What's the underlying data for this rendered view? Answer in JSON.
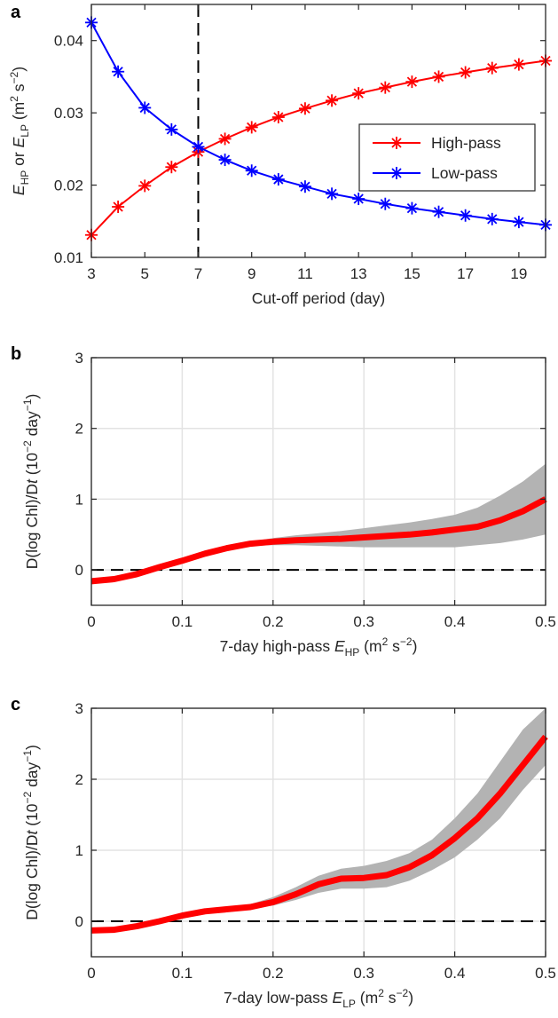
{
  "chart_data": [
    {
      "panel": "a",
      "type": "line",
      "x": [
        3,
        4,
        5,
        6,
        7,
        8,
        9,
        10,
        11,
        12,
        13,
        14,
        15,
        16,
        17,
        18,
        19,
        20
      ],
      "xlim": [
        3,
        20
      ],
      "ylim": [
        0.01,
        0.045
      ],
      "xticks": [
        "3",
        "5",
        "7",
        "9",
        "11",
        "13",
        "15",
        "17",
        "19"
      ],
      "yticks": [
        "0.01",
        "0.02",
        "0.03",
        "0.04"
      ],
      "xlabel": "Cut-off period (day)",
      "ylabel": {
        "e1": "E",
        "sub1": "HP",
        "mid": " or ",
        "e2": "E",
        "sub2": "LP",
        "unit_open": " (m",
        "sup1": "2",
        "unit_mid": " s",
        "sup2": "−2",
        "unit_close": ")"
      },
      "vline_x": 7,
      "grid": false,
      "legend_position": "right",
      "series": [
        {
          "name": "High-pass",
          "color": "#ff0000",
          "values": [
            0.0131,
            0.017,
            0.0199,
            0.0225,
            0.0246,
            0.0264,
            0.028,
            0.0294,
            0.0306,
            0.0317,
            0.0327,
            0.0335,
            0.0343,
            0.035,
            0.0356,
            0.0362,
            0.0367,
            0.0372
          ]
        },
        {
          "name": "Low-pass",
          "color": "#0000ff",
          "values": [
            0.0425,
            0.0357,
            0.0307,
            0.0277,
            0.0253,
            0.0235,
            0.022,
            0.0208,
            0.0198,
            0.0188,
            0.0181,
            0.0174,
            0.0168,
            0.0163,
            0.0158,
            0.0153,
            0.0149,
            0.0145
          ]
        }
      ]
    },
    {
      "panel": "b",
      "type": "line",
      "x": [
        0,
        0.025,
        0.05,
        0.075,
        0.1,
        0.125,
        0.15,
        0.175,
        0.2,
        0.225,
        0.25,
        0.275,
        0.3,
        0.325,
        0.35,
        0.375,
        0.4,
        0.425,
        0.45,
        0.475,
        0.5
      ],
      "xlim": [
        0,
        0.5
      ],
      "ylim": [
        -0.5,
        3
      ],
      "xticks": [
        "0",
        "0.1",
        "0.2",
        "0.3",
        "0.4",
        "0.5"
      ],
      "yticks": [
        "0",
        "1",
        "2",
        "3"
      ],
      "xlabel": {
        "pre": "7-day high-pass ",
        "e": "E",
        "sub": "HP",
        "unit_open": " (m",
        "sup1": "2",
        "unit_mid": " s",
        "sup2": "−2",
        "unit_close": ")"
      },
      "ylabel": {
        "pre": "D(log Chl)/D",
        "t": "t",
        "unit_open": "  (10",
        "sup1": "−2",
        "unit_mid": " day",
        "sup2": "−1",
        "unit_close": ")"
      },
      "hline_y": 0,
      "grid": true,
      "line_color": "#ff0000",
      "band_color": "#b3b3b3",
      "y": [
        -0.16,
        -0.13,
        -0.06,
        0.04,
        0.13,
        0.23,
        0.31,
        0.37,
        0.4,
        0.42,
        0.43,
        0.44,
        0.46,
        0.48,
        0.5,
        0.53,
        0.57,
        0.61,
        0.7,
        0.83,
        1.0
      ],
      "lower": [
        -0.16,
        -0.13,
        -0.06,
        0.04,
        0.13,
        0.22,
        0.3,
        0.34,
        0.35,
        0.35,
        0.34,
        0.33,
        0.32,
        0.32,
        0.32,
        0.32,
        0.32,
        0.35,
        0.38,
        0.43,
        0.5
      ],
      "upper": [
        -0.16,
        -0.13,
        -0.06,
        0.04,
        0.13,
        0.24,
        0.33,
        0.4,
        0.45,
        0.49,
        0.52,
        0.55,
        0.59,
        0.63,
        0.67,
        0.72,
        0.78,
        0.88,
        1.05,
        1.25,
        1.5
      ]
    },
    {
      "panel": "c",
      "type": "line",
      "x": [
        0,
        0.025,
        0.05,
        0.075,
        0.1,
        0.125,
        0.15,
        0.175,
        0.2,
        0.225,
        0.25,
        0.275,
        0.3,
        0.325,
        0.35,
        0.375,
        0.4,
        0.425,
        0.45,
        0.475,
        0.5
      ],
      "xlim": [
        0,
        0.5
      ],
      "ylim": [
        -0.5,
        3
      ],
      "xticks": [
        "0",
        "0.1",
        "0.2",
        "0.3",
        "0.4",
        "0.5"
      ],
      "yticks": [
        "0",
        "1",
        "2",
        "3"
      ],
      "xlabel": {
        "pre": "7-day low-pass ",
        "e": "E",
        "sub": "LP",
        "unit_open": " (m",
        "sup1": "2",
        "unit_mid": " s",
        "sup2": "−2",
        "unit_close": ")"
      },
      "ylabel": {
        "pre": "D(log Chl)/D",
        "t": "t",
        "unit_open": " (10",
        "sup1": "−2",
        "unit_mid": " day",
        "sup2": "−1",
        "unit_close": ")"
      },
      "hline_y": 0,
      "grid": true,
      "line_color": "#ff0000",
      "band_color": "#b3b3b3",
      "y": [
        -0.13,
        -0.12,
        -0.07,
        0.0,
        0.08,
        0.14,
        0.17,
        0.2,
        0.27,
        0.38,
        0.52,
        0.6,
        0.61,
        0.65,
        0.76,
        0.93,
        1.17,
        1.45,
        1.8,
        2.2,
        2.6
      ],
      "lower": [
        -0.13,
        -0.12,
        -0.07,
        0.0,
        0.07,
        0.13,
        0.16,
        0.18,
        0.22,
        0.3,
        0.4,
        0.46,
        0.46,
        0.48,
        0.57,
        0.72,
        0.9,
        1.15,
        1.45,
        1.85,
        2.2
      ],
      "upper": [
        -0.13,
        -0.12,
        -0.07,
        0.0,
        0.09,
        0.15,
        0.19,
        0.24,
        0.34,
        0.48,
        0.64,
        0.74,
        0.78,
        0.85,
        0.96,
        1.15,
        1.45,
        1.8,
        2.25,
        2.7,
        3.0
      ]
    }
  ]
}
